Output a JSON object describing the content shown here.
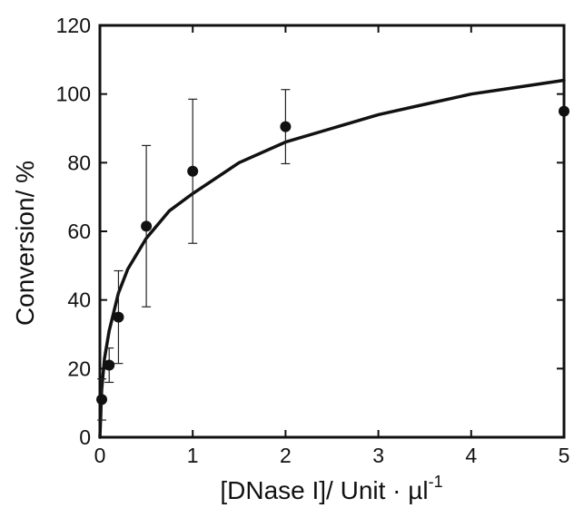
{
  "chart_data": {
    "type": "scatter",
    "xlabel": "[DNase I]/ Unit · µl",
    "xlabel_superscript": "-1",
    "ylabel": "Conversion/ %",
    "xlim": [
      0,
      5
    ],
    "ylim": [
      0,
      120
    ],
    "x_ticks": [
      0,
      1,
      2,
      3,
      4,
      5
    ],
    "y_ticks": [
      0,
      20,
      40,
      60,
      80,
      100,
      120
    ],
    "grid": false,
    "points": [
      {
        "x": 0.02,
        "y": 11,
        "err": 6
      },
      {
        "x": 0.1,
        "y": 21,
        "err": 5
      },
      {
        "x": 0.2,
        "y": 35,
        "err": 13.5
      },
      {
        "x": 0.5,
        "y": 61.5,
        "err": 23.5
      },
      {
        "x": 1,
        "y": 77.5,
        "err": 21
      },
      {
        "x": 2,
        "y": 90.5,
        "err": 10.8
      },
      {
        "x": 5,
        "y": 95,
        "err": 0
      }
    ],
    "fit_curve": {
      "x": [
        0,
        0.02,
        0.05,
        0.1,
        0.2,
        0.3,
        0.5,
        0.75,
        1,
        1.5,
        2,
        2.5,
        3,
        3.5,
        4,
        4.5,
        5
      ],
      "y": [
        0,
        14,
        23,
        31,
        42,
        49,
        58,
        66,
        71,
        80,
        86,
        90,
        94,
        97,
        100,
        102,
        104
      ]
    }
  }
}
